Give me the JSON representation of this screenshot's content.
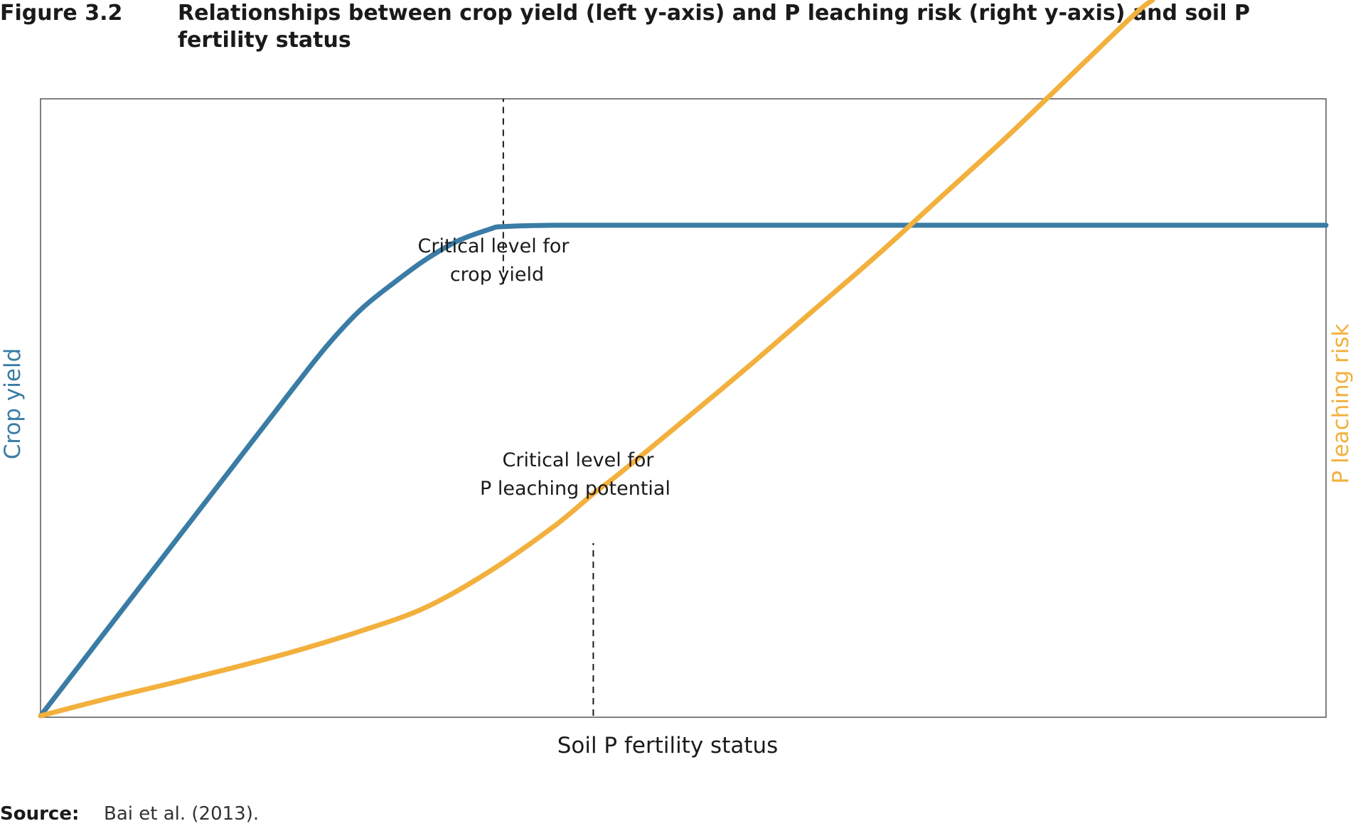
{
  "figure": {
    "number": "Figure 3.2",
    "title": "Relationships between crop yield (left y-axis) and P leaching risk (right y-axis) and soil P fertility status"
  },
  "source": {
    "label": "Source:",
    "text": "Bai et al. (2013)."
  },
  "colors": {
    "crop_yield": "#3A7CA5",
    "p_leaching": "#F2B03D",
    "frame": "#555555",
    "critical_line": "#1a1a1a"
  },
  "chart_data": {
    "type": "line",
    "title": "Relationships between crop yield (left y-axis) and P leaching risk (right y-axis) and soil P fertility status",
    "xlabel": "Soil P fertility status",
    "ylabel": "Crop yield",
    "ylabel_right": "P leaching risk",
    "xlim": [
      0,
      100
    ],
    "ylim": [
      0,
      100
    ],
    "grid": false,
    "legend": "none",
    "series": [
      {
        "name": "Crop yield",
        "axis": "left",
        "x": [
          0,
          5,
          10,
          15,
          20,
          22.5,
          25,
          27.5,
          30,
          32.5,
          35,
          36,
          40,
          50,
          60,
          70,
          80,
          90,
          100
        ],
        "y": [
          0,
          13.5,
          27,
          40.5,
          54,
          60.5,
          66,
          70.2,
          74,
          77,
          78.9,
          79.3,
          79.5,
          79.5,
          79.5,
          79.5,
          79.5,
          79.5,
          79.5
        ]
      },
      {
        "name": "P leaching risk",
        "axis": "right",
        "x": [
          0,
          5,
          10,
          15,
          20,
          25,
          30,
          35,
          40,
          43,
          45,
          50,
          55,
          60,
          65,
          70,
          75,
          80,
          85,
          86.5
        ],
        "y": [
          0,
          2.7,
          5.2,
          7.8,
          10.6,
          13.8,
          17.6,
          23.5,
          30.8,
          36,
          39.2,
          47.8,
          56.5,
          65.5,
          74.5,
          84,
          93.5,
          103.5,
          113.5,
          116
        ]
      }
    ],
    "annotations": [
      {
        "id": "critical-crop-yield",
        "text_lines": [
          "Critical level for",
          "crop yield"
        ],
        "x": 36,
        "line_y_range": [
          70,
          100
        ]
      },
      {
        "id": "critical-p-leaching",
        "text_lines": [
          "Critical level for",
          "P leaching potential"
        ],
        "x": 43,
        "line_y_range": [
          0,
          28
        ]
      }
    ]
  }
}
